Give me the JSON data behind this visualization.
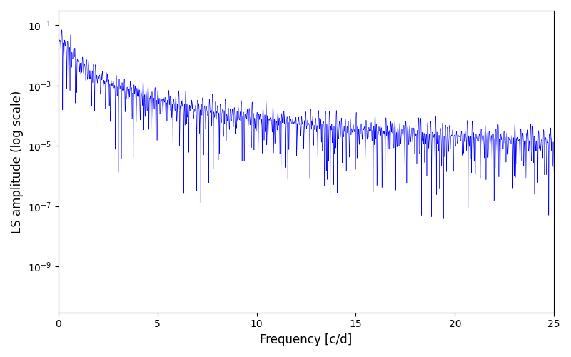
{
  "xlabel": "Frequency [c/d]",
  "ylabel": "LS amplitude (log scale)",
  "line_color": "#0000ff",
  "xlim": [
    0,
    25
  ],
  "ylim": [
    3e-11,
    0.3
  ],
  "figsize": [
    8.0,
    5.0
  ],
  "dpi": 100,
  "background_color": "#ffffff",
  "seed": 42,
  "n_points": 12000,
  "freq_max": 25.0
}
